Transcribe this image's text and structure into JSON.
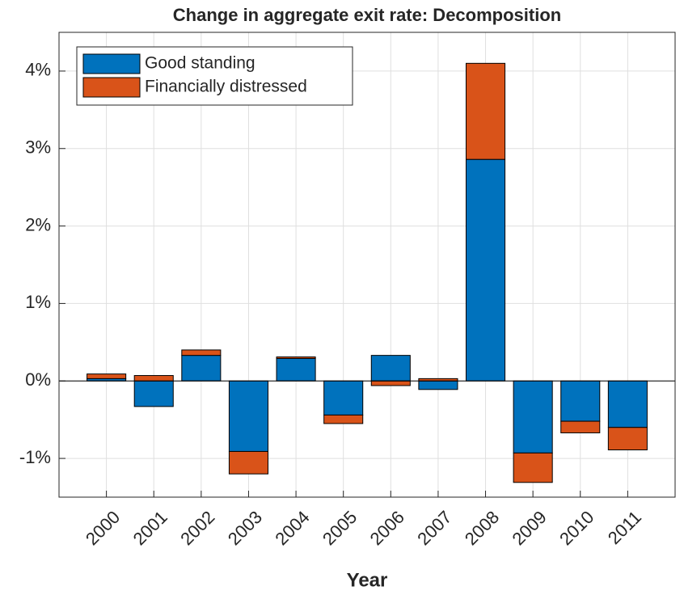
{
  "chart_data": {
    "type": "bar",
    "stacked": true,
    "title": "Change in aggregate exit rate: Decomposition",
    "x_label": "Year",
    "categories": [
      "2000",
      "2001",
      "2002",
      "2003",
      "2004",
      "2005",
      "2006",
      "2007",
      "2008",
      "2009",
      "2010",
      "2011"
    ],
    "series": [
      {
        "name": "Good standing",
        "color": "#0072BD",
        "values": [
          0.03,
          -0.33,
          0.33,
          -0.91,
          0.29,
          -0.44,
          0.33,
          -0.11,
          2.86,
          -0.93,
          -0.52,
          -0.6
        ]
      },
      {
        "name": "Financially distressed",
        "color": "#D95319",
        "values": [
          0.06,
          0.07,
          0.07,
          -0.29,
          0.02,
          -0.11,
          -0.06,
          0.03,
          1.24,
          -0.38,
          -0.15,
          -0.29
        ]
      }
    ],
    "ylim": [
      -1.5,
      4.5
    ],
    "yticks": [
      {
        "value": -1,
        "label": "-1%"
      },
      {
        "value": 0,
        "label": "0%"
      },
      {
        "value": 1,
        "label": "1%"
      },
      {
        "value": 2,
        "label": "2%"
      },
      {
        "value": 3,
        "label": "3%"
      },
      {
        "value": 4,
        "label": "4%"
      }
    ],
    "grid": true,
    "legend": "upper-left"
  }
}
